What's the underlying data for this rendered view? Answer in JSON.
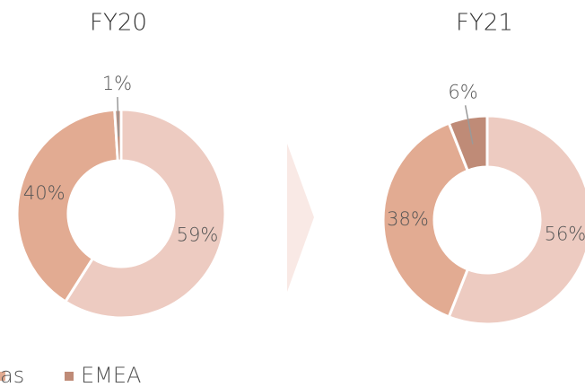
{
  "chart_data": [
    {
      "type": "pie",
      "title": "FY20",
      "categories": [
        null,
        "as",
        "EMEA"
      ],
      "values": [
        59,
        40,
        1
      ],
      "colors": [
        "#edcbc1",
        "#e2ab92",
        "#bf8b77"
      ]
    },
    {
      "type": "pie",
      "title": "FY21",
      "categories": [
        null,
        "as",
        "EMEA"
      ],
      "values": [
        56,
        38,
        6
      ],
      "colors": [
        "#edcbc1",
        "#e2ab92",
        "#bf8b77"
      ]
    }
  ]
}
